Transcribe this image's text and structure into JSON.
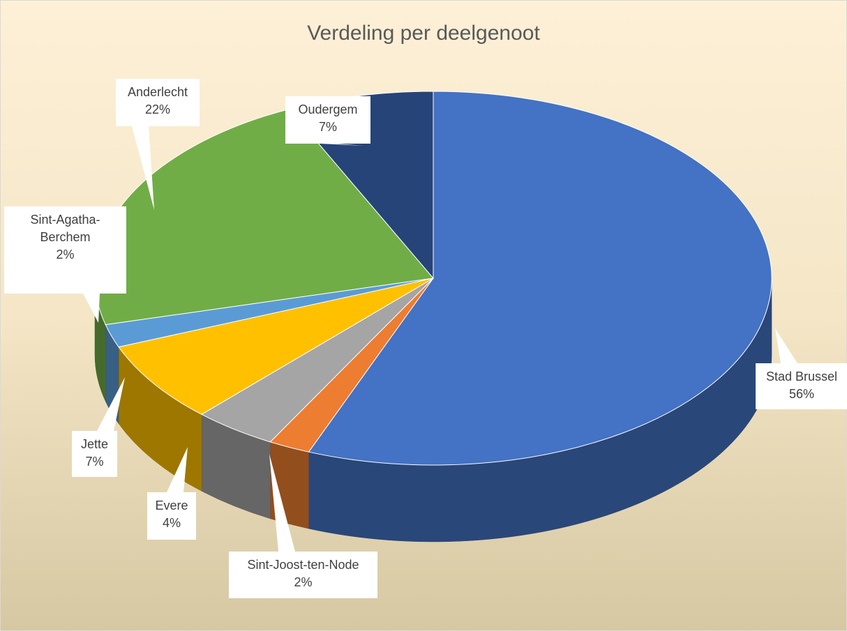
{
  "chart_data": {
    "type": "pie3d",
    "title": "Verdeling per deelgenoot",
    "categories": [
      "Stad Brussel",
      "Sint-Joost-ten-Node",
      "Evere",
      "Jette",
      "Sint-Agatha-Berchem",
      "Anderlecht",
      "Oudergem"
    ],
    "values": [
      56,
      2,
      4,
      7,
      2,
      22,
      7
    ],
    "value_labels": [
      "56%",
      "2%",
      "4%",
      "7%",
      "2%",
      "22%",
      "7%"
    ],
    "colors": [
      "#4472c4",
      "#ed7d31",
      "#a5a5a5",
      "#ffc000",
      "#5b9bd5",
      "#70ad47",
      "#264478"
    ]
  }
}
